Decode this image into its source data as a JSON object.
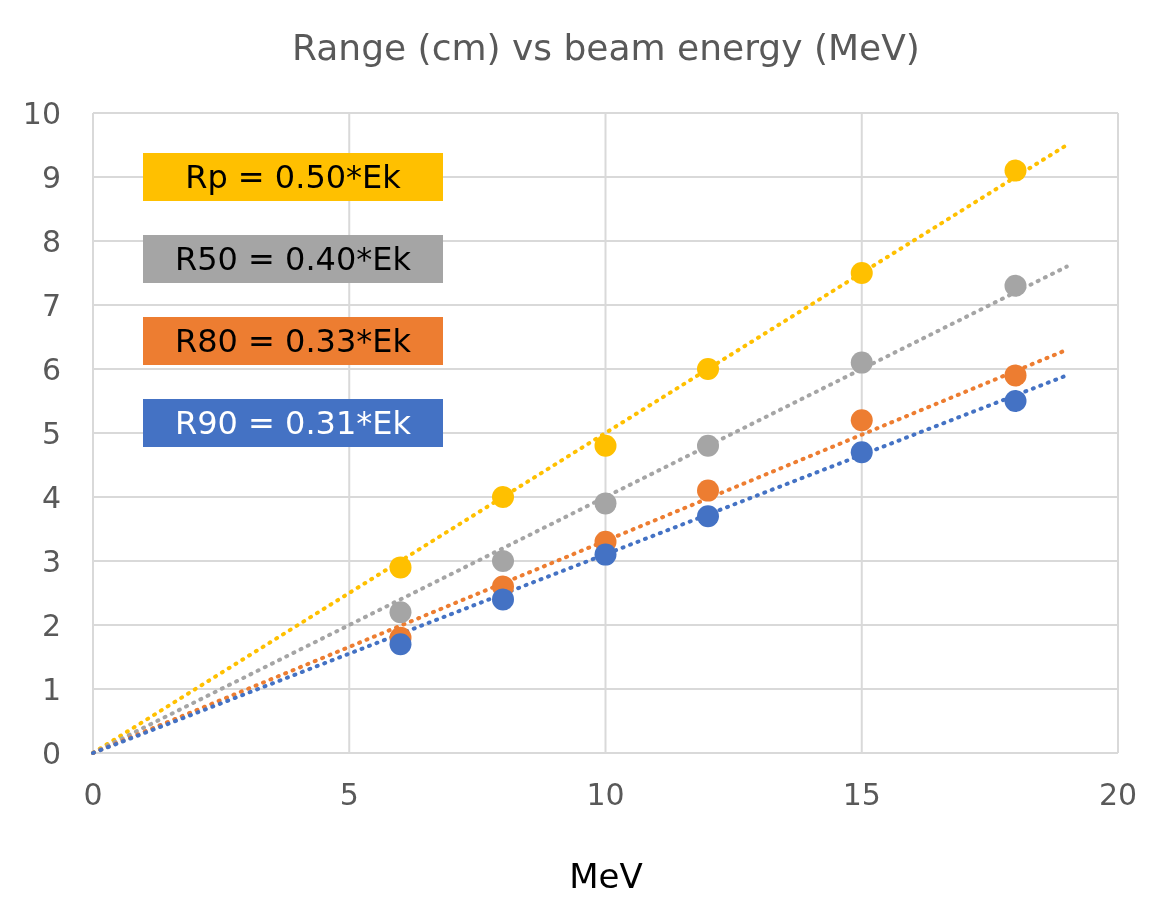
{
  "chart_data": {
    "type": "scatter",
    "title": "Range (cm) vs beam energy (MeV)",
    "xlabel": "MeV",
    "xlim": [
      0,
      20
    ],
    "xticks": [
      0,
      5,
      10,
      15,
      20
    ],
    "ylim": [
      0,
      10
    ],
    "yticks": [
      0,
      1,
      2,
      3,
      4,
      5,
      6,
      7,
      8,
      9,
      10
    ],
    "grid": true,
    "legend": "top left",
    "marker": "circle",
    "line_style": "dotted",
    "series": [
      {
        "type": "line",
        "marker": "none",
        "name": "Rp = 0.50*Ek",
        "color": "#ffc000",
        "x": [
          0,
          19
        ],
        "values": [
          0,
          9.5
        ]
      },
      {
        "type": "line",
        "marker": "none",
        "name": "R50 = 0.40*Ek",
        "color": "#a5a5a5",
        "x": [
          0,
          19
        ],
        "values": [
          0,
          7.6
        ]
      },
      {
        "type": "line",
        "marker": "none",
        "name": "R80 = 0.33*Ek",
        "color": "#ed7d31",
        "x": [
          0,
          19
        ],
        "values": [
          0,
          6.3
        ]
      },
      {
        "type": "line",
        "marker": "none",
        "name": "R90 = 0.31*Ek",
        "color": "#4472c4",
        "x": [
          0,
          19
        ],
        "values": [
          0,
          5.9
        ]
      },
      {
        "color": "#ffc000",
        "x": [
          6,
          8,
          10,
          12,
          15,
          18
        ],
        "values": [
          2.9,
          4.0,
          4.8,
          6.0,
          7.5,
          9.1
        ]
      },
      {
        "color": "#a5a5a5",
        "x": [
          6,
          8,
          10,
          12,
          15,
          18
        ],
        "values": [
          2.2,
          3.0,
          3.9,
          4.8,
          6.1,
          7.3
        ]
      },
      {
        "color": "#ed7d31",
        "x": [
          6,
          8,
          10,
          12,
          15,
          18
        ],
        "values": [
          1.8,
          2.6,
          3.3,
          4.1,
          5.2,
          5.9
        ]
      },
      {
        "color": "#4472c4",
        "x": [
          6,
          8,
          10,
          12,
          15,
          18
        ],
        "values": [
          1.7,
          2.4,
          3.1,
          3.7,
          4.7,
          5.5
        ]
      }
    ]
  }
}
